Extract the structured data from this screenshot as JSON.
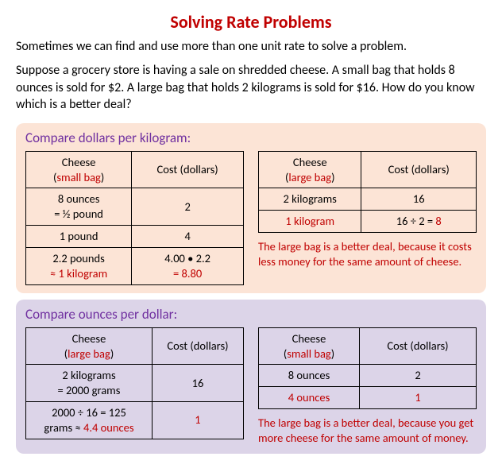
{
  "title": "Solving Rate Problems",
  "intro": "Sometimes we can find and use more than one unit rate to solve a problem.",
  "problem": "Suppose a grocery store is having a sale on shredded cheese. A small bag that holds 8 ounces is sold for $2. A large bag that holds 2 kilograms is sold for $16. How do you know which is a better deal?",
  "section1": {
    "title": "Compare dollars per kilogram:",
    "left": {
      "h1a": "Cheese",
      "h1b": "small bag",
      "h2": "Cost (dollars)",
      "r1c1a": "8 ounces",
      "r1c1b": "= ½ pound",
      "r1c2": "2",
      "r2c1": "1 pound",
      "r2c2": "4",
      "r3c1a": "2.2 pounds",
      "r3c1b": "≈ 1 kilogram",
      "r3c2a": "4.00 • 2.2",
      "r3c2b": "= 8.80"
    },
    "right": {
      "h1a": "Cheese",
      "h1b": "large bag",
      "h2": "Cost (dollars)",
      "r1c1": "2 kilograms",
      "r1c2": "16",
      "r2c1": "1 kilogram",
      "r2c2a": "16 ÷ 2 =",
      "r2c2b": "8"
    },
    "conclusion": "The large bag is a better deal, because it costs less money for the same amount of cheese."
  },
  "section2": {
    "title": "Compare ounces per dollar:",
    "left": {
      "h1a": "Cheese",
      "h1b": "large bag",
      "h2": "Cost (dollars)",
      "r1c1a": "2 kilograms",
      "r1c1b": "= 2000 grams",
      "r1c2": "16",
      "r2c1a": "2000 ÷ 16 = 125",
      "r2c1b": "grams ≈",
      "r2c1c": "4.4 ounces",
      "r2c2": "1"
    },
    "right": {
      "h1a": "Cheese",
      "h1b": "small bag",
      "h2": "Cost (dollars)",
      "r1c1": "8 ounces",
      "r1c2": "2",
      "r2c1": "4 ounces",
      "r2c2": "1"
    },
    "conclusion": "The large bag is a better deal, because you get more cheese for the same amount of money."
  }
}
